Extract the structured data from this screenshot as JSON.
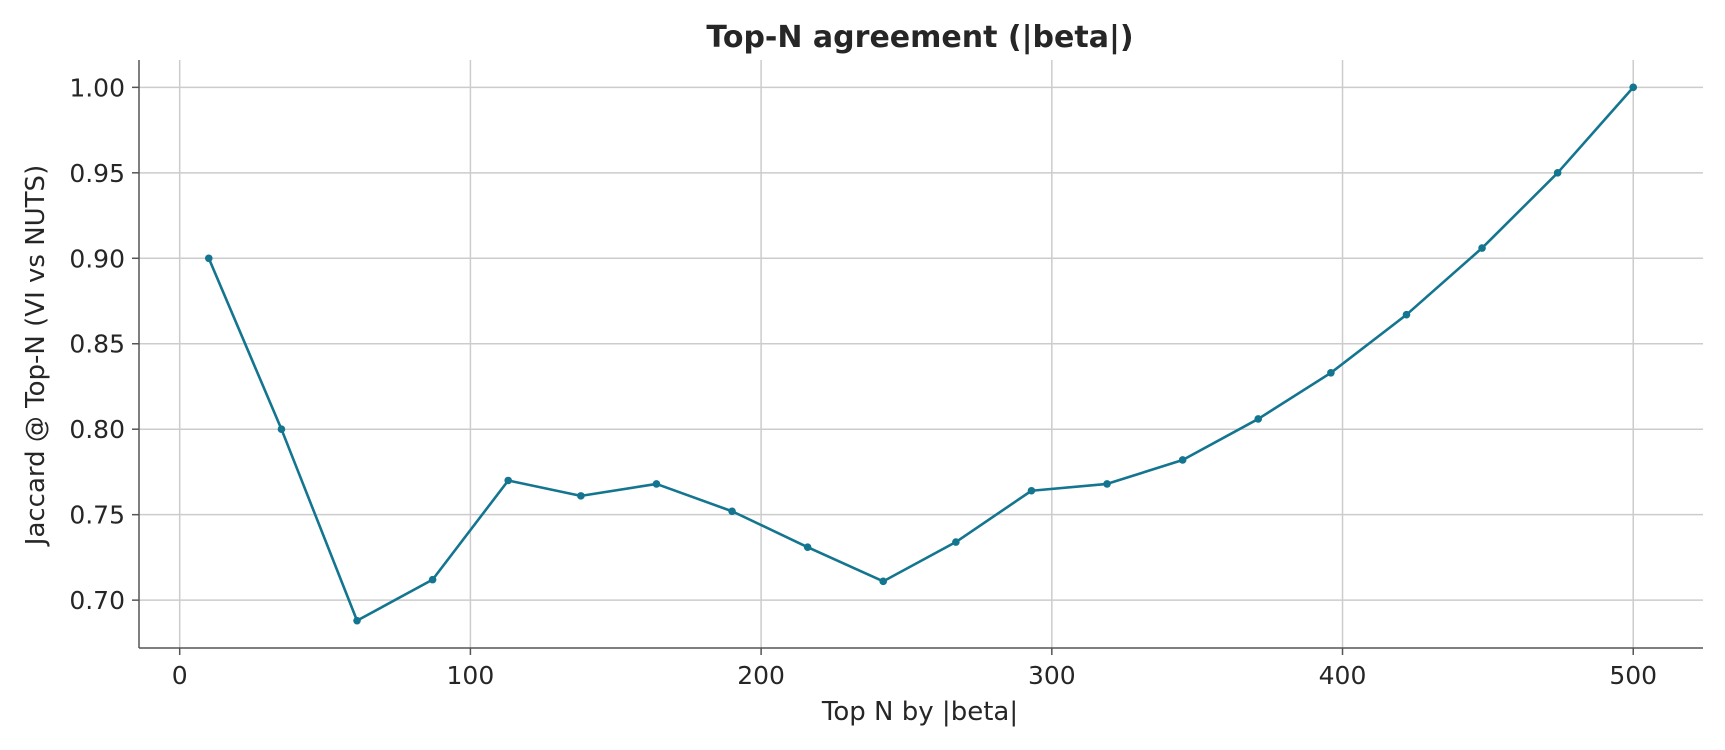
{
  "chart_data": {
    "type": "line",
    "title": "Top-N agreement (|beta|)",
    "xlabel": "Top N by |beta|",
    "ylabel": "Jaccard @ Top-N (VI vs NUTS)",
    "xlim": [
      -14,
      524
    ],
    "ylim": [
      0.672,
      1.016
    ],
    "xticks": [
      0,
      100,
      200,
      300,
      400,
      500
    ],
    "xtick_labels": [
      "0",
      "100",
      "200",
      "300",
      "400",
      "500"
    ],
    "yticks": [
      0.7,
      0.75,
      0.8,
      0.85,
      0.9,
      0.95,
      1.0
    ],
    "ytick_labels": [
      "0.70",
      "0.75",
      "0.80",
      "0.85",
      "0.90",
      "0.95",
      "1.00"
    ],
    "grid": true,
    "series": [
      {
        "color": "#13758f",
        "x": [
          10,
          35,
          61,
          87,
          113,
          138,
          164,
          190,
          216,
          242,
          267,
          293,
          319,
          345,
          371,
          396,
          422,
          448,
          474,
          500
        ],
        "y": [
          0.9,
          0.8,
          0.688,
          0.712,
          0.77,
          0.761,
          0.768,
          0.752,
          0.731,
          0.711,
          0.734,
          0.764,
          0.768,
          0.782,
          0.806,
          0.833,
          0.867,
          0.906,
          0.95,
          1.0
        ]
      }
    ]
  }
}
